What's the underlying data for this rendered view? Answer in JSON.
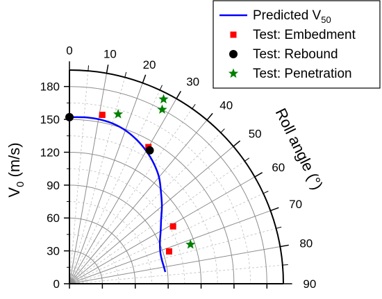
{
  "chart_data": {
    "type": "polar-scatter",
    "radial_axis": {
      "label_main": "V",
      "label_sub": "0",
      "label_unit": " (m/s)",
      "ticks": [
        "0",
        "30",
        "60",
        "90",
        "120",
        "150",
        "180"
      ],
      "range": [
        0,
        195
      ]
    },
    "angular_axis": {
      "label": "Roll angle (°)",
      "ticks": [
        "0",
        "10",
        "20",
        "30",
        "40",
        "50",
        "60",
        "70",
        "80",
        "90"
      ],
      "range": [
        0,
        90
      ]
    },
    "legend": {
      "placement": "top-right",
      "entries": [
        {
          "key": "predicted",
          "label_main": "Predicted V",
          "label_sub": "50"
        },
        {
          "key": "embed",
          "label_main": "Test: Embedment",
          "label_sub": ""
        },
        {
          "key": "rebound",
          "label_main": "Test: Rebound",
          "label_sub": ""
        },
        {
          "key": "penetration",
          "label_main": "Test: Penetration",
          "label_sub": ""
        }
      ]
    },
    "grid": true,
    "series": [
      {
        "key": "predicted",
        "type": "line",
        "color": "#0000ff",
        "points": [
          [
            0,
            152
          ],
          [
            5,
            152.5
          ],
          [
            10,
            152.5
          ],
          [
            15,
            151.5
          ],
          [
            20,
            149
          ],
          [
            25,
            145
          ],
          [
            30,
            140
          ],
          [
            35,
            134
          ],
          [
            40,
            127
          ],
          [
            45,
            118
          ],
          [
            50,
            110
          ],
          [
            55,
            102
          ],
          [
            60,
            96
          ],
          [
            65,
            91
          ],
          [
            70,
            88
          ],
          [
            75,
            87
          ],
          [
            80,
            87.5
          ],
          [
            83,
            88
          ]
        ]
      },
      {
        "key": "embed",
        "type": "scatter",
        "marker": "square",
        "color": "#ff0000",
        "points": [
          [
            11,
            157
          ],
          [
            30,
            144
          ],
          [
            61,
            108
          ],
          [
            72,
            95.5
          ]
        ]
      },
      {
        "key": "rebound",
        "type": "scatter",
        "marker": "circle",
        "color": "#000000",
        "points": [
          [
            0,
            152
          ],
          [
            31,
            142
          ]
        ]
      },
      {
        "key": "penetration",
        "type": "scatter",
        "marker": "star",
        "color": "#008000",
        "points": [
          [
            16,
            161
          ],
          [
            27,
            189
          ],
          [
            28,
            180
          ],
          [
            72,
            116
          ]
        ]
      }
    ]
  }
}
